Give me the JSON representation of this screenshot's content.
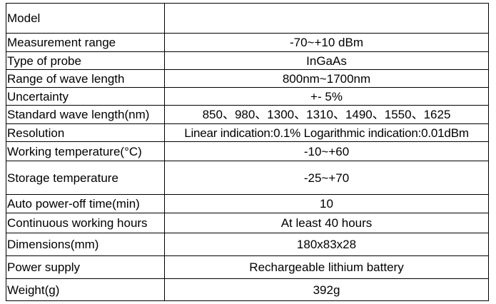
{
  "table": {
    "rows": [
      [
        "Model"
      ],
      [
        "Measurement range",
        "-70~+10 dBm"
      ],
      [
        "Type of probe",
        "InGaAs"
      ],
      [
        "Range of wave length",
        "800nm~1700nm"
      ],
      [
        "Uncertainty",
        "+- 5%"
      ],
      [
        "Standard wave length(nm)",
        "850、980、1300、1310、1490、1550、1625"
      ],
      [
        "Resolution",
        "Linear indication:0.1% Logarithmic indication:0.01dBm"
      ],
      [
        "Working temperature(°C)",
        "-10~+60"
      ],
      [
        "Storage temperature",
        "-25~+70"
      ],
      [
        "Auto power-off time(min)",
        "10"
      ],
      [
        "Continuous working hours",
        "At least 40 hours"
      ],
      [
        "Dimensions(mm)",
        "180x83x28"
      ],
      [
        "Power supply",
        "Rechargeable lithium battery"
      ],
      [
        "Weight(g)",
        "392g"
      ]
    ]
  }
}
